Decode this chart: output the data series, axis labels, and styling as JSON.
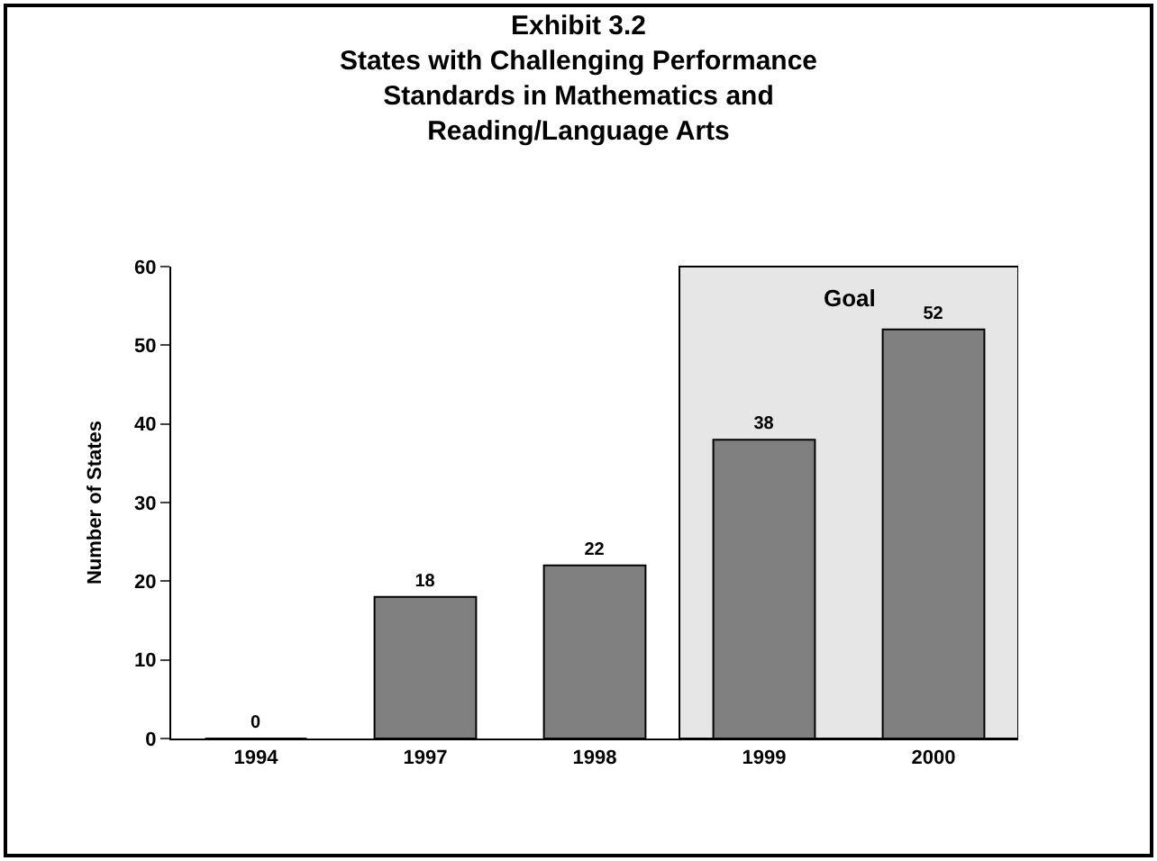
{
  "chart_data": {
    "type": "bar",
    "title": "Exhibit 3.2\nStates with Challenging Performance\nStandards in Mathematics and\nReading/Language Arts",
    "ylabel": "Number of States",
    "categories": [
      "1994",
      "1997",
      "1998",
      "1999",
      "2000"
    ],
    "values": [
      0,
      18,
      22,
      38,
      52
    ],
    "color": "#808080",
    "ylim": [
      0,
      60
    ],
    "yticks": [
      0,
      10,
      20,
      30,
      40,
      50,
      60
    ],
    "data_labels": true,
    "bands": [
      {
        "axis": "x",
        "from": "1999",
        "to": "2000",
        "label": "Goal",
        "color": "#e6e6e6"
      }
    ]
  }
}
